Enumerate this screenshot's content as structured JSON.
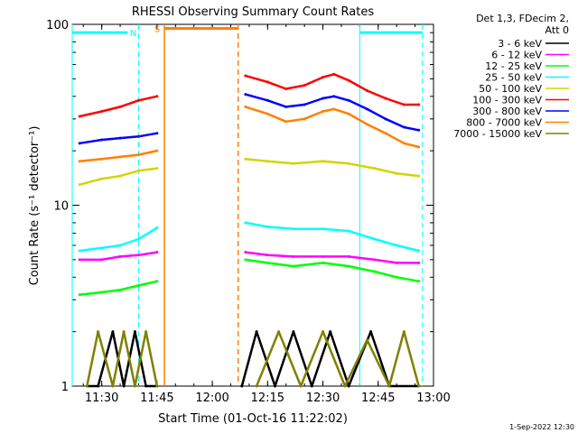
{
  "chart_data": {
    "type": "line",
    "title": "RHESSI Observing Summary Count Rates",
    "xlabel": "Start Time (01-Oct-16 11:22:02)",
    "ylabel": "Count Rate (s⁻¹ detector⁻¹)",
    "yscale": "log",
    "ylim": [
      1,
      100
    ],
    "xlim": [
      "11:22",
      "13:00"
    ],
    "x_ticks": [
      "11:30",
      "11:45",
      "12:00",
      "12:15",
      "12:30",
      "12:45",
      "13:00"
    ],
    "y_ticks": [
      "1",
      "10",
      "100"
    ],
    "grid": false,
    "legend_header": [
      "Det 1,3, FDecim 2,",
      "Att 0"
    ],
    "legend_placement": "right",
    "annotations": {
      "night_label": "N",
      "saa_label": "S",
      "night_color": "#00ffff",
      "saa_color": "#ff8000",
      "night_start": "11:22",
      "night_end": "11:40",
      "night_level": 90,
      "saa_start": "11:47",
      "saa_end": "12:07",
      "saa_level": 95,
      "night2_start": "12:40",
      "night2_end": "12:57",
      "night2_level": 90,
      "cyan_lines": [
        "11:22",
        "11:40",
        "12:40",
        "12:57"
      ],
      "orange_lines": [
        "11:47",
        "12:07"
      ]
    },
    "series": [
      {
        "name": "3 - 6 keV",
        "color": "#000000",
        "segments": [
          {
            "x": [
              "11:26",
              "11:29",
              "11:33",
              "11:36",
              "11:39",
              "11:42",
              "11:45"
            ],
            "y": [
              1,
              1,
              2,
              1,
              2,
              1,
              1
            ]
          },
          {
            "x": [
              "12:08",
              "12:12",
              "12:17",
              "12:22",
              "12:27",
              "12:32",
              "12:37",
              "12:43",
              "12:48",
              "12:56"
            ],
            "y": [
              1,
              2,
              1,
              2,
              1,
              2,
              1,
              2,
              1,
              1
            ]
          }
        ]
      },
      {
        "name": "6 - 12 keV",
        "color": "#ff00ff",
        "segments": [
          {
            "x": [
              "11:24",
              "11:30",
              "11:35",
              "11:40",
              "11:45"
            ],
            "y": [
              5,
              5,
              5.2,
              5.3,
              5.5
            ]
          },
          {
            "x": [
              "12:09",
              "12:15",
              "12:22",
              "12:30",
              "12:37",
              "12:44",
              "12:50",
              "12:56"
            ],
            "y": [
              5.5,
              5.3,
              5.2,
              5.2,
              5.2,
              5,
              4.8,
              4.8
            ]
          }
        ]
      },
      {
        "name": "12 - 25 keV",
        "color": "#00ff00",
        "segments": [
          {
            "x": [
              "11:24",
              "11:30",
              "11:35",
              "11:40",
              "11:45"
            ],
            "y": [
              3.2,
              3.3,
              3.4,
              3.6,
              3.8
            ]
          },
          {
            "x": [
              "12:09",
              "12:15",
              "12:22",
              "12:30",
              "12:37",
              "12:44",
              "12:50",
              "12:56"
            ],
            "y": [
              5,
              4.8,
              4.6,
              4.8,
              4.6,
              4.3,
              4,
              3.8
            ]
          }
        ]
      },
      {
        "name": "25 - 50 keV",
        "color": "#00ffff",
        "segments": [
          {
            "x": [
              "11:24",
              "11:30",
              "11:35",
              "11:40",
              "11:45"
            ],
            "y": [
              5.6,
              5.8,
              6,
              6.5,
              7.5
            ]
          },
          {
            "x": [
              "12:09",
              "12:15",
              "12:22",
              "12:30",
              "12:37",
              "12:44",
              "12:50",
              "12:56"
            ],
            "y": [
              8,
              7.6,
              7.4,
              7.4,
              7.2,
              6.5,
              6,
              5.6
            ]
          }
        ]
      },
      {
        "name": "50 - 100 keV",
        "color": "#d4d400",
        "segments": [
          {
            "x": [
              "11:24",
              "11:30",
              "11:35",
              "11:40",
              "11:45"
            ],
            "y": [
              13,
              14,
              14.5,
              15.5,
              16
            ]
          },
          {
            "x": [
              "12:09",
              "12:15",
              "12:22",
              "12:30",
              "12:37",
              "12:44",
              "12:50",
              "12:56"
            ],
            "y": [
              18,
              17.5,
              17,
              17.5,
              17,
              16,
              15,
              14.5
            ]
          }
        ]
      },
      {
        "name": "100 - 300 keV",
        "color": "#ff0000",
        "segments": [
          {
            "x": [
              "11:24",
              "11:30",
              "11:35",
              "11:40",
              "11:45"
            ],
            "y": [
              31,
              33,
              35,
              38,
              40
            ]
          },
          {
            "x": [
              "12:09",
              "12:15",
              "12:20",
              "12:25",
              "12:30",
              "12:33",
              "12:37",
              "12:42",
              "12:47",
              "12:52",
              "12:56"
            ],
            "y": [
              52,
              48,
              44,
              46,
              51,
              53,
              49,
              43,
              39,
              36,
              36
            ]
          }
        ]
      },
      {
        "name": "300 - 800 keV",
        "color": "#0000ff",
        "segments": [
          {
            "x": [
              "11:24",
              "11:30",
              "11:35",
              "11:40",
              "11:45"
            ],
            "y": [
              22,
              23,
              23.5,
              24,
              25
            ]
          },
          {
            "x": [
              "12:09",
              "12:15",
              "12:20",
              "12:25",
              "12:30",
              "12:33",
              "12:37",
              "12:42",
              "12:47",
              "12:52",
              "12:56"
            ],
            "y": [
              41,
              38,
              35,
              36,
              39,
              40,
              38,
              34,
              30,
              27,
              26
            ]
          }
        ]
      },
      {
        "name": "800 - 7000 keV",
        "color": "#ff8000",
        "segments": [
          {
            "x": [
              "11:24",
              "11:30",
              "11:35",
              "11:40",
              "11:45"
            ],
            "y": [
              17.5,
              18,
              18.5,
              19,
              20
            ]
          },
          {
            "x": [
              "12:09",
              "12:15",
              "12:20",
              "12:25",
              "12:30",
              "12:33",
              "12:37",
              "12:42",
              "12:47",
              "12:52",
              "12:56"
            ],
            "y": [
              35,
              32,
              29,
              30,
              33,
              34,
              32,
              28,
              25,
              22,
              21
            ]
          }
        ]
      },
      {
        "name": "7000 - 15000 keV",
        "color": "#808000",
        "segments": [
          {
            "x": [
              "11:26",
              "11:29",
              "11:33",
              "11:36",
              "11:39",
              "11:42",
              "11:45"
            ],
            "y": [
              1,
              2,
              1,
              2,
              1,
              2,
              1
            ]
          },
          {
            "x": [
              "12:12",
              "12:18",
              "12:24",
              "12:30",
              "12:36",
              "12:42",
              "12:48",
              "12:52",
              "12:56"
            ],
            "y": [
              1,
              2,
              1,
              2,
              1,
              1.8,
              1,
              2,
              1
            ]
          }
        ]
      }
    ]
  },
  "timestamp": "1-Sep-2022 12:30"
}
